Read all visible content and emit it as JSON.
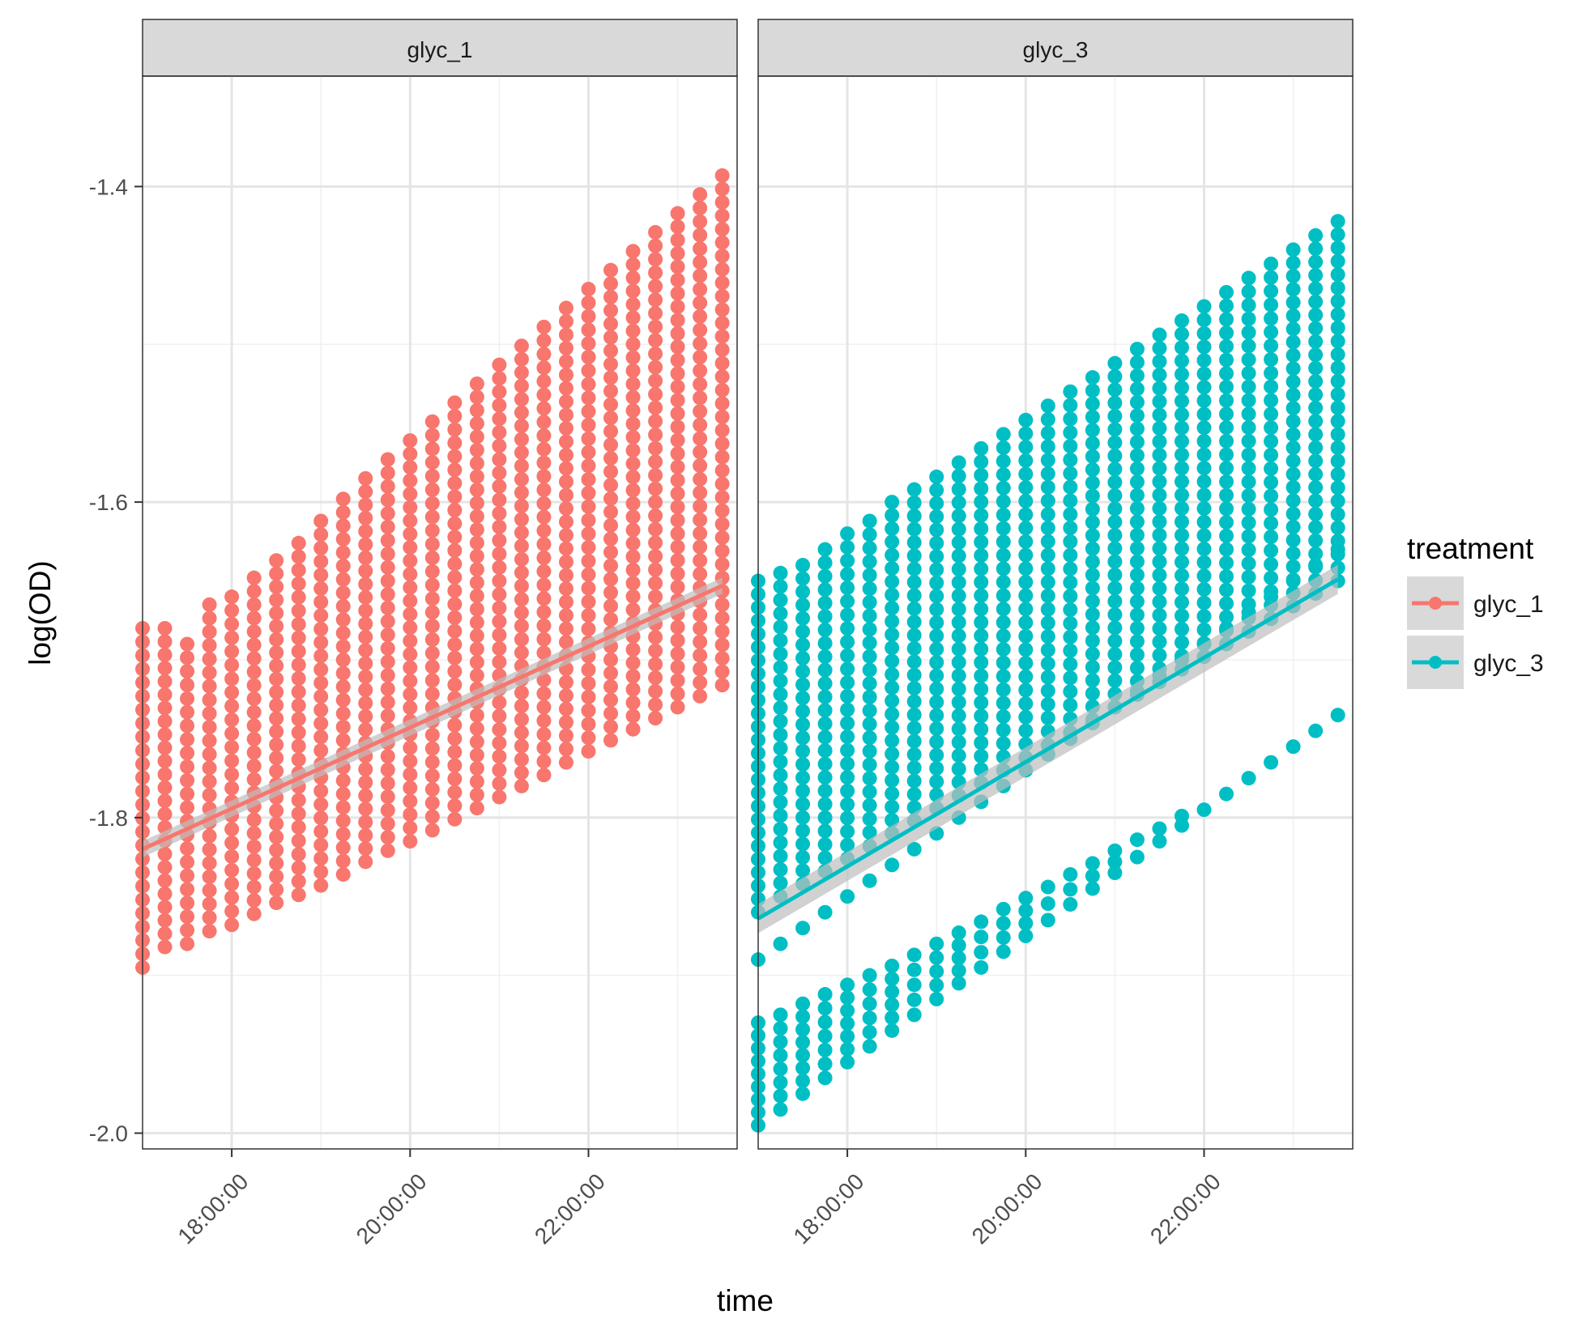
{
  "chart_data": {
    "type": "scatter",
    "facets": [
      "glyc_1",
      "glyc_3"
    ],
    "xlabel": "time",
    "ylabel": "log(OD)",
    "x_ticks": [
      "18:00:00",
      "20:00:00",
      "22:00:00"
    ],
    "xlim": [
      "17:00:00",
      "23:40:00"
    ],
    "ylim": [
      -2.01,
      -1.33
    ],
    "y_ticks": [
      -1.4,
      -1.6,
      -1.8,
      -2.0
    ],
    "y_tick_labels": [
      "-1.4",
      "-1.6",
      "-1.8",
      "-2.0"
    ],
    "grid": true,
    "legend": {
      "title": "treatment",
      "position": "right",
      "entries": [
        "glyc_1",
        "glyc_3"
      ]
    },
    "colors": {
      "glyc_1": "#f8766d",
      "glyc_3": "#00bfc4",
      "ribbon": "#bdbdbd",
      "strip": "#d9d9d9"
    },
    "time_points": [
      "17:00",
      "17:15",
      "17:30",
      "17:45",
      "18:00",
      "18:15",
      "18:30",
      "18:45",
      "19:00",
      "19:15",
      "19:30",
      "19:45",
      "20:00",
      "20:15",
      "20:30",
      "20:45",
      "21:00",
      "21:15",
      "21:30",
      "21:45",
      "22:00",
      "22:15",
      "22:30",
      "22:45",
      "23:00",
      "23:15",
      "23:30"
    ],
    "series": [
      {
        "name": "glyc_1",
        "facet": "glyc_1",
        "band_min": [
          -1.895,
          -1.882,
          -1.88,
          -1.872,
          -1.868,
          -1.861,
          -1.854,
          -1.849,
          -1.843,
          -1.836,
          -1.828,
          -1.821,
          -1.815,
          -1.808,
          -1.801,
          -1.794,
          -1.787,
          -1.78,
          -1.773,
          -1.765,
          -1.758,
          -1.751,
          -1.744,
          -1.737,
          -1.73,
          -1.723,
          -1.716
        ],
        "band_max": [
          -1.68,
          -1.68,
          -1.69,
          -1.665,
          -1.66,
          -1.648,
          -1.637,
          -1.626,
          -1.612,
          -1.598,
          -1.585,
          -1.573,
          -1.561,
          -1.549,
          -1.537,
          -1.525,
          -1.513,
          -1.501,
          -1.489,
          -1.477,
          -1.465,
          -1.453,
          -1.441,
          -1.429,
          -1.417,
          -1.405,
          -1.393
        ],
        "fit": [
          -1.82,
          -1.653
        ]
      },
      {
        "name": "glyc_3",
        "facet": "glyc_3",
        "bands": [
          {
            "band_min": [
              -1.86,
              -1.85,
              -1.842,
              -1.834,
              -1.826,
              -1.818,
              -1.81,
              -1.802,
              -1.794,
              -1.786,
              -1.778,
              -1.77,
              -1.762,
              -1.754,
              -1.746,
              -1.738,
              -1.73,
              -1.722,
              -1.714,
              -1.706,
              -1.698,
              -1.69,
              -1.682,
              -1.674,
              -1.666,
              -1.658,
              -1.65
            ],
            "band_max": [
              -1.65,
              -1.645,
              -1.64,
              -1.63,
              -1.62,
              -1.612,
              -1.6,
              -1.592,
              -1.584,
              -1.575,
              -1.566,
              -1.557,
              -1.548,
              -1.539,
              -1.53,
              -1.521,
              -1.512,
              -1.503,
              -1.494,
              -1.485,
              -1.476,
              -1.467,
              -1.458,
              -1.449,
              -1.44,
              -1.431,
              -1.422
            ]
          },
          {
            "band_min": [
              -1.995,
              -1.985,
              -1.975,
              -1.965,
              -1.955,
              -1.945,
              -1.935,
              -1.925,
              -1.915,
              -1.905,
              -1.895,
              -1.885,
              -1.875,
              -1.865,
              -1.855,
              -1.845,
              -1.835,
              -1.825,
              -1.815,
              -1.805,
              -1.795,
              -1.785,
              -1.775,
              -1.765,
              -1.755,
              -1.745,
              -1.735
            ],
            "band_max": [
              -1.93,
              -1.925,
              -1.918,
              -1.912,
              -1.906,
              -1.9,
              -1.894,
              -1.887,
              -1.88,
              -1.873,
              -1.866,
              -1.858,
              -1.851,
              -1.844,
              -1.836,
              -1.829,
              -1.821,
              -1.814,
              -1.807,
              -1.799,
              -1.792,
              -1.785,
              -1.777,
              -1.77,
              -1.762,
              -1.755,
              -1.747
            ]
          },
          {
            "band_min": [
              -1.89,
              -1.88,
              -1.87,
              -1.86,
              -1.85,
              -1.84,
              -1.83,
              -1.82,
              -1.81,
              -1.8,
              -1.79,
              -1.78,
              -1.77,
              -1.76,
              -1.75,
              -1.74,
              -1.73,
              -1.72,
              -1.71,
              -1.7,
              -1.69,
              -1.68,
              -1.67,
              -1.66,
              -1.65,
              -1.64,
              -1.63
            ],
            "band_max": [
              -1.89,
              -1.88,
              -1.87,
              -1.86,
              -1.85,
              -1.84,
              -1.83,
              -1.82,
              -1.81,
              -1.8,
              -1.79,
              -1.78,
              -1.77,
              -1.76,
              -1.75,
              -1.74,
              -1.73,
              -1.72,
              -1.71,
              -1.7,
              -1.69,
              -1.68,
              -1.67,
              -1.66,
              -1.65,
              -1.64,
              -1.63
            ]
          }
        ],
        "fit": [
          -1.864,
          -1.649
        ]
      }
    ]
  }
}
